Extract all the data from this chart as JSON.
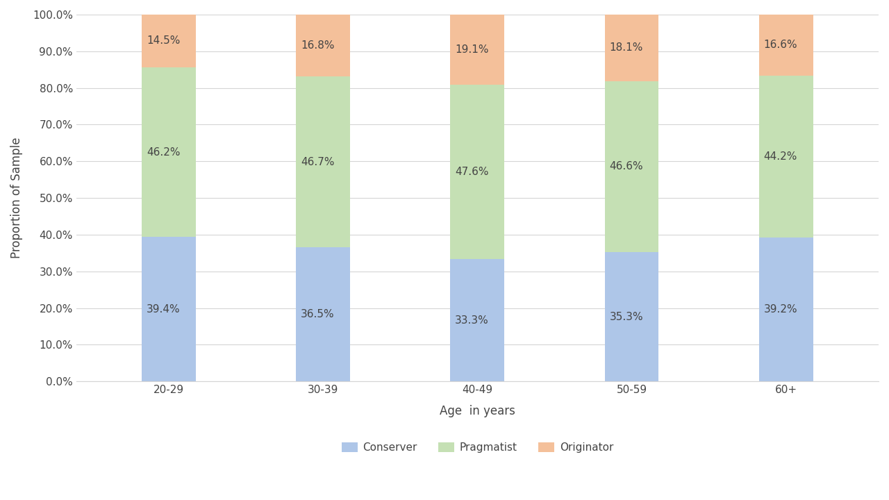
{
  "categories": [
    "20-29",
    "30-39",
    "40-49",
    "50-59",
    "60+"
  ],
  "conserver": [
    39.4,
    36.5,
    33.3,
    35.3,
    39.2
  ],
  "pragmatist": [
    46.2,
    46.7,
    47.6,
    46.6,
    44.2
  ],
  "originator": [
    14.5,
    16.8,
    19.1,
    18.1,
    16.6
  ],
  "conserver_color": "#aec6e8",
  "pragmatist_color": "#c5e0b4",
  "originator_color": "#f4c09a",
  "xlabel": "Age  in years",
  "ylabel": "Proportion of Sample",
  "ylim": [
    0,
    100
  ],
  "yticks": [
    0,
    10,
    20,
    30,
    40,
    50,
    60,
    70,
    80,
    90,
    100
  ],
  "ytick_labels": [
    "0.0%",
    "10.0%",
    "20.0%",
    "30.0%",
    "40.0%",
    "50.0%",
    "60.0%",
    "70.0%",
    "80.0%",
    "90.0%",
    "100.0%"
  ],
  "legend_labels": [
    "Conserver",
    "Pragmatist",
    "Originator"
  ],
  "bar_width": 0.35,
  "label_fontsize": 11,
  "axis_fontsize": 12,
  "tick_fontsize": 11,
  "legend_fontsize": 11,
  "background_color": "#ffffff",
  "grid_color": "#d5d5d5",
  "text_color": "#444444"
}
